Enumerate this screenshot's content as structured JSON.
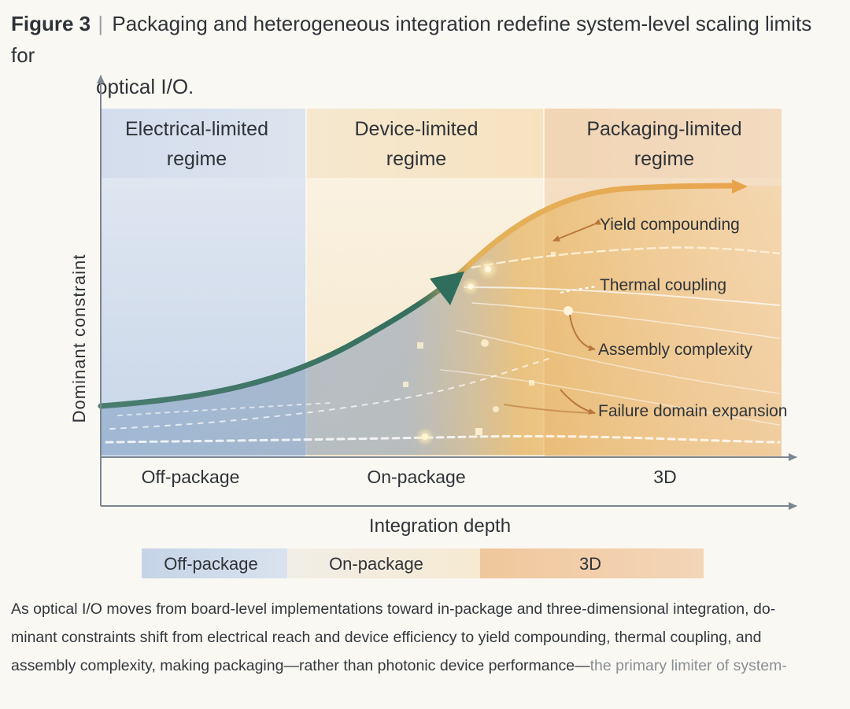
{
  "title": {
    "figure_label": "Figure 3",
    "separator": "|",
    "line1": "Packaging and heterogeneous integration redefine system-level scaling limits for",
    "line2": "optical I/O."
  },
  "regimes": [
    {
      "line1": "Electrical-limited",
      "line2": "regime"
    },
    {
      "line1": "Device-limited",
      "line2": "regime"
    },
    {
      "line1": "Packaging-limited",
      "line2": "regime"
    }
  ],
  "annotations": [
    {
      "label": "Yield compounding"
    },
    {
      "label": "Thermal coupling"
    },
    {
      "label": "Assembly complexity"
    },
    {
      "label": "Failure domain expansion"
    }
  ],
  "axes": {
    "y_label": "Dominant constraint",
    "x_label": "Integration depth",
    "x_ticks": [
      "Off-package",
      "On-package",
      "3D"
    ]
  },
  "legend": {
    "items": [
      "Off-package",
      "On-package",
      "3D"
    ]
  },
  "colors": {
    "electrical_regime": "#dde5f0",
    "device_regime": "#f7ecd6",
    "packaging_regime": "#f3d9be",
    "curve_start": "#3f7a68",
    "curve_end": "#e9a34c",
    "arrow_head": "#2f6d5c"
  },
  "caption": {
    "line1": "As optical I/O moves from board-level implementations toward in-package and three-dimensional integration, do-",
    "line2": "minant constraints shift from electrical reach and device efficiency to yield compounding, thermal coupling, and",
    "line3_main": "assembly complexity, making packaging—rather than photonic device performance—",
    "line3_faded": "the primary limiter of system-"
  }
}
